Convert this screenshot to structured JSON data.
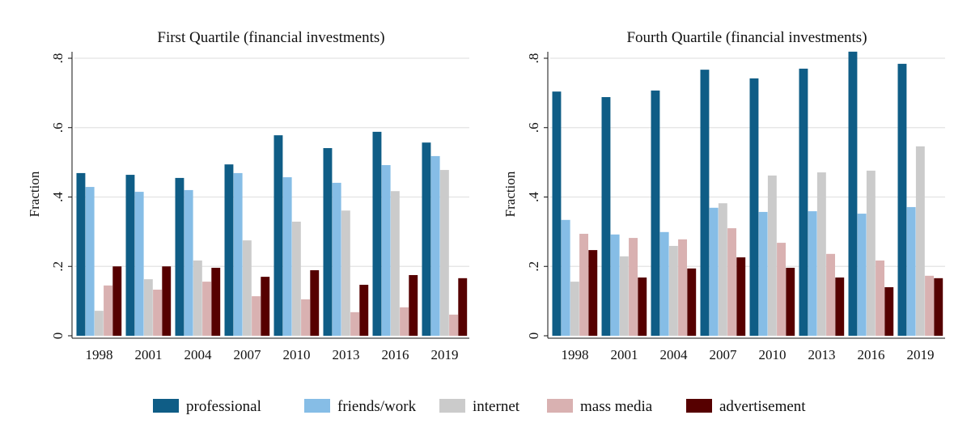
{
  "colors": {
    "professional": "#0f5d86",
    "friends/work": "#86bde6",
    "internet": "#cbcbcb",
    "mass media": "#d9b1b1",
    "advertisement": "#560000",
    "grid": "#e3e3e3"
  },
  "legend": [
    "professional",
    "friends/work",
    "internet",
    "mass media",
    "advertisement"
  ],
  "chart_data": [
    {
      "type": "bar",
      "title": "First Quartile (financial investments)",
      "ylabel": "Fraction",
      "ylim": [
        0,
        0.8
      ],
      "yticks": [
        0,
        0.2,
        0.4,
        0.6,
        0.8
      ],
      "ytick_labels": [
        "0",
        ".2",
        ".4",
        ".6",
        ".8"
      ],
      "grid": true,
      "categories": [
        "1998",
        "2001",
        "2004",
        "2007",
        "2010",
        "2013",
        "2016",
        "2019"
      ],
      "series": [
        {
          "name": "professional",
          "values": [
            0.469,
            0.464,
            0.455,
            0.494,
            0.578,
            0.541,
            0.588,
            0.557
          ]
        },
        {
          "name": "friends/work",
          "values": [
            0.429,
            0.415,
            0.42,
            0.469,
            0.457,
            0.441,
            0.492,
            0.518
          ]
        },
        {
          "name": "internet",
          "values": [
            0.072,
            0.163,
            0.217,
            0.275,
            0.329,
            0.361,
            0.417,
            0.478
          ]
        },
        {
          "name": "mass media",
          "values": [
            0.145,
            0.133,
            0.156,
            0.114,
            0.105,
            0.068,
            0.082,
            0.061
          ]
        },
        {
          "name": "advertisement",
          "values": [
            0.2,
            0.2,
            0.196,
            0.17,
            0.189,
            0.147,
            0.175,
            0.166
          ]
        }
      ]
    },
    {
      "type": "bar",
      "title": "Fourth Quartile (financial investments)",
      "ylabel": "Fraction",
      "ylim": [
        0,
        0.8
      ],
      "yticks": [
        0,
        0.2,
        0.4,
        0.6,
        0.8
      ],
      "ytick_labels": [
        "0",
        ".2",
        ".4",
        ".6",
        ".8"
      ],
      "grid": true,
      "categories": [
        "1998",
        "2001",
        "2004",
        "2007",
        "2010",
        "2013",
        "2016",
        "2019"
      ],
      "series": [
        {
          "name": "professional",
          "values": [
            0.704,
            0.688,
            0.707,
            0.767,
            0.742,
            0.77,
            0.819,
            0.784
          ]
        },
        {
          "name": "friends/work",
          "values": [
            0.334,
            0.292,
            0.299,
            0.369,
            0.357,
            0.359,
            0.352,
            0.371
          ]
        },
        {
          "name": "internet",
          "values": [
            0.156,
            0.229,
            0.259,
            0.382,
            0.462,
            0.471,
            0.476,
            0.546
          ]
        },
        {
          "name": "mass media",
          "values": [
            0.294,
            0.282,
            0.278,
            0.31,
            0.268,
            0.236,
            0.217,
            0.173
          ]
        },
        {
          "name": "advertisement",
          "values": [
            0.247,
            0.168,
            0.194,
            0.226,
            0.196,
            0.168,
            0.14,
            0.166
          ]
        }
      ]
    }
  ]
}
